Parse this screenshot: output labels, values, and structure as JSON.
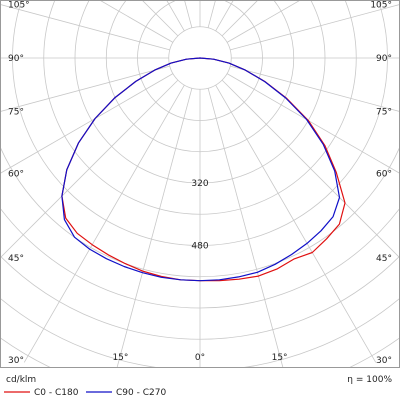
{
  "chart_data": {
    "type": "polar",
    "unit_label": "cd/klm",
    "efficiency_label": "η = 100%",
    "radial_ticks": [
      {
        "value": 320,
        "label": "320"
      },
      {
        "value": 480,
        "label": "480"
      }
    ],
    "radial_max": 640,
    "angle_ticks_left": [
      {
        "deg": 105,
        "label": "105°"
      },
      {
        "deg": 90,
        "label": "90°"
      },
      {
        "deg": 75,
        "label": "75°"
      },
      {
        "deg": 60,
        "label": "60°"
      },
      {
        "deg": 45,
        "label": "45°"
      },
      {
        "deg": 30,
        "label": "30°"
      }
    ],
    "angle_ticks_right": [
      {
        "deg": 105,
        "label": "105°"
      },
      {
        "deg": 90,
        "label": "90°"
      },
      {
        "deg": 75,
        "label": "75°"
      },
      {
        "deg": 60,
        "label": "60°"
      },
      {
        "deg": 45,
        "label": "45°"
      },
      {
        "deg": 30,
        "label": "30°"
      }
    ],
    "angle_ticks_bottom": [
      {
        "deg": -15,
        "label": "15°"
      },
      {
        "deg": 0,
        "label": "0°"
      },
      {
        "deg": 15,
        "label": "15°"
      }
    ],
    "series": [
      {
        "name": "C0 - C180",
        "color": "#e01010",
        "points": [
          [
            -90,
            0
          ],
          [
            -85,
            35
          ],
          [
            -80,
            75
          ],
          [
            -75,
            120
          ],
          [
            -70,
            175
          ],
          [
            -65,
            240
          ],
          [
            -60,
            310
          ],
          [
            -55,
            380
          ],
          [
            -50,
            445
          ],
          [
            -45,
            500
          ],
          [
            -40,
            535
          ],
          [
            -35,
            548
          ],
          [
            -30,
            552
          ],
          [
            -25,
            556
          ],
          [
            -20,
            560
          ],
          [
            -15,
            565
          ],
          [
            -10,
            568
          ],
          [
            -5,
            570
          ],
          [
            0,
            570
          ],
          [
            5,
            572
          ],
          [
            10,
            575
          ],
          [
            15,
            578
          ],
          [
            20,
            575
          ],
          [
            25,
            568
          ],
          [
            30,
            575
          ],
          [
            35,
            565
          ],
          [
            40,
            555
          ],
          [
            45,
            525
          ],
          [
            50,
            455
          ],
          [
            55,
            390
          ],
          [
            60,
            320
          ],
          [
            65,
            245
          ],
          [
            70,
            178
          ],
          [
            75,
            120
          ],
          [
            80,
            75
          ],
          [
            85,
            35
          ],
          [
            90,
            0
          ]
        ]
      },
      {
        "name": "C90 - C270",
        "color": "#1010c8",
        "points": [
          [
            -90,
            0
          ],
          [
            -85,
            35
          ],
          [
            -80,
            75
          ],
          [
            -75,
            120
          ],
          [
            -70,
            175
          ],
          [
            -65,
            240
          ],
          [
            -60,
            310
          ],
          [
            -55,
            380
          ],
          [
            -50,
            445
          ],
          [
            -45,
            500
          ],
          [
            -40,
            540
          ],
          [
            -35,
            560
          ],
          [
            -30,
            565
          ],
          [
            -25,
            567
          ],
          [
            -20,
            568
          ],
          [
            -15,
            569
          ],
          [
            -10,
            570
          ],
          [
            -5,
            570
          ],
          [
            0,
            570
          ],
          [
            5,
            570
          ],
          [
            10,
            569
          ],
          [
            15,
            568
          ],
          [
            20,
            562
          ],
          [
            25,
            555
          ],
          [
            30,
            548
          ],
          [
            35,
            540
          ],
          [
            40,
            530
          ],
          [
            45,
            505
          ],
          [
            50,
            450
          ],
          [
            55,
            385
          ],
          [
            60,
            315
          ],
          [
            65,
            242
          ],
          [
            70,
            176
          ],
          [
            75,
            120
          ],
          [
            80,
            75
          ],
          [
            85,
            35
          ],
          [
            90,
            0
          ]
        ]
      }
    ]
  }
}
